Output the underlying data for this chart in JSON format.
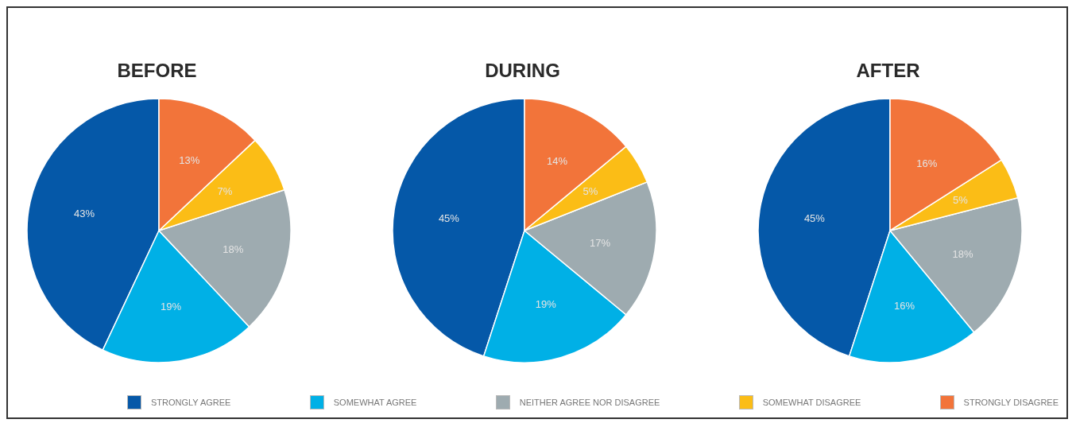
{
  "chart_data": [
    {
      "type": "pie",
      "title": "BEFORE",
      "categories": [
        "STRONGLY AGREE",
        "SOMEWHAT AGREE",
        "NEITHER AGREE NOR DISAGREE",
        "SOMEWHAT DISAGREE",
        "STRONGLY DISAGREE"
      ],
      "values": [
        43,
        19,
        18,
        7,
        13
      ],
      "value_labels": [
        "43%",
        "19%",
        "18%",
        "7%",
        "13%"
      ],
      "colors": [
        "#0558a8",
        "#00b0e6",
        "#9eabb0",
        "#fbbd16",
        "#f2743a"
      ],
      "legend": "bottom"
    },
    {
      "type": "pie",
      "title": "DURING",
      "values": [
        45,
        19,
        17,
        5,
        14
      ],
      "value_labels": [
        "45%",
        "19%",
        "17%",
        "5%",
        "14%"
      ],
      "colors": [
        "#0558a8",
        "#00b0e6",
        "#9eabb0",
        "#fbbd16",
        "#f2743a"
      ]
    },
    {
      "type": "pie",
      "title": "AFTER",
      "values": [
        45,
        16,
        18,
        5,
        16
      ],
      "value_labels": [
        "45%",
        "16%",
        "18%",
        "5%",
        "16%"
      ],
      "colors": [
        "#0558a8",
        "#00b0e6",
        "#9eabb0",
        "#fbbd16",
        "#f2743a"
      ]
    }
  ]
}
